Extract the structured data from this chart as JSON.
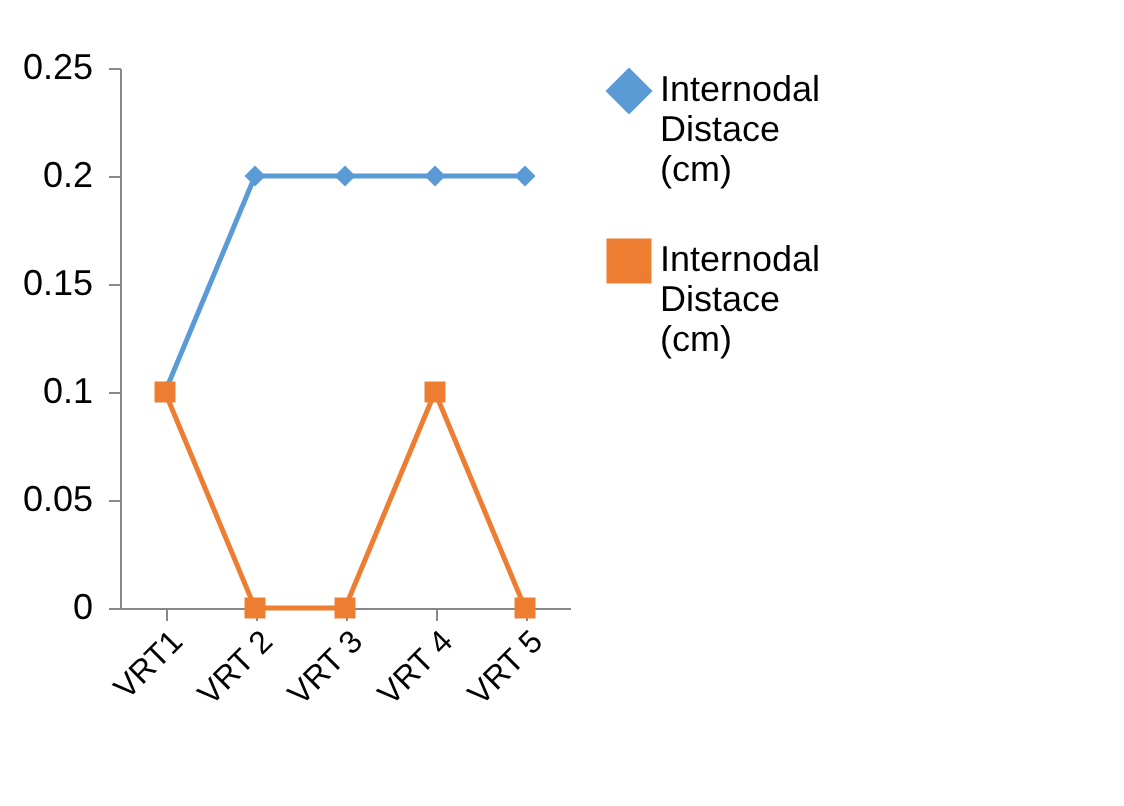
{
  "chart_data": {
    "type": "line",
    "categories": [
      "VRT1",
      "VRT 2",
      "VRT 3",
      "VRT 4",
      "VRT 5"
    ],
    "series": [
      {
        "name": "Internodal Distace (cm)",
        "color": "#5b9bd5",
        "marker": "diamond",
        "values": [
          0.1,
          0.2,
          0.2,
          0.2,
          0.2
        ]
      },
      {
        "name": "Internodal Distace (cm)",
        "color": "#ed7d31",
        "marker": "square",
        "values": [
          0.1,
          0,
          0,
          0.1,
          0
        ]
      }
    ],
    "ylim": [
      0,
      0.25
    ],
    "yticks": [
      0,
      0.05,
      0.1,
      0.15,
      0.2,
      0.25
    ],
    "grid": false,
    "legend": "right",
    "line_style": "solid"
  }
}
